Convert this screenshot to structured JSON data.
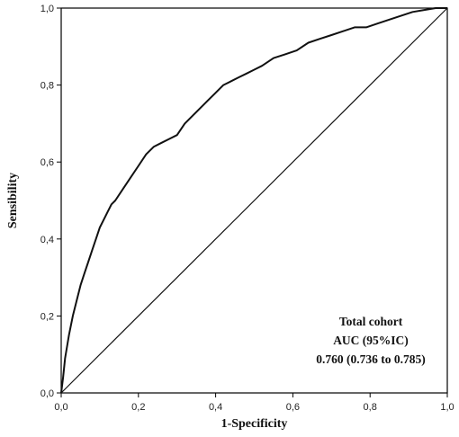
{
  "chart_data": {
    "type": "line",
    "xlabel": "1-Specificity",
    "ylabel": "Sensibility",
    "xlim": [
      0,
      1
    ],
    "ylim": [
      0,
      1
    ],
    "x_ticks": [
      "0,0",
      "0,2",
      "0,4",
      "0,6",
      "0,8",
      "1,0"
    ],
    "y_ticks": [
      "0,0",
      "0,2",
      "0,4",
      "0,6",
      "0,8",
      "1,0"
    ],
    "grid": false,
    "annotation": [
      "Total cohort",
      "AUC (95%IC)",
      "0.760 (0.736 to 0.785)"
    ],
    "series": [
      {
        "x": [
          0.0,
          0.005,
          0.01,
          0.02,
          0.03,
          0.04,
          0.05,
          0.06,
          0.07,
          0.08,
          0.09,
          0.1,
          0.11,
          0.12,
          0.13,
          0.14,
          0.16,
          0.18,
          0.2,
          0.22,
          0.24,
          0.26,
          0.28,
          0.3,
          0.32,
          0.34,
          0.36,
          0.38,
          0.4,
          0.42,
          0.44,
          0.46,
          0.48,
          0.5,
          0.52,
          0.55,
          0.58,
          0.61,
          0.64,
          0.67,
          0.7,
          0.73,
          0.76,
          0.79,
          0.82,
          0.85,
          0.88,
          0.91,
          0.94,
          0.97,
          1.0
        ],
        "y": [
          0.0,
          0.04,
          0.09,
          0.15,
          0.2,
          0.24,
          0.28,
          0.31,
          0.34,
          0.37,
          0.4,
          0.43,
          0.45,
          0.47,
          0.49,
          0.5,
          0.53,
          0.56,
          0.59,
          0.62,
          0.64,
          0.65,
          0.66,
          0.67,
          0.7,
          0.72,
          0.74,
          0.76,
          0.78,
          0.8,
          0.81,
          0.82,
          0.83,
          0.84,
          0.85,
          0.87,
          0.88,
          0.89,
          0.91,
          0.92,
          0.93,
          0.94,
          0.95,
          0.95,
          0.96,
          0.97,
          0.98,
          0.99,
          0.995,
          1.0,
          1.0
        ]
      },
      {
        "x": [
          0,
          1
        ],
        "y": [
          0,
          1
        ]
      }
    ]
  }
}
